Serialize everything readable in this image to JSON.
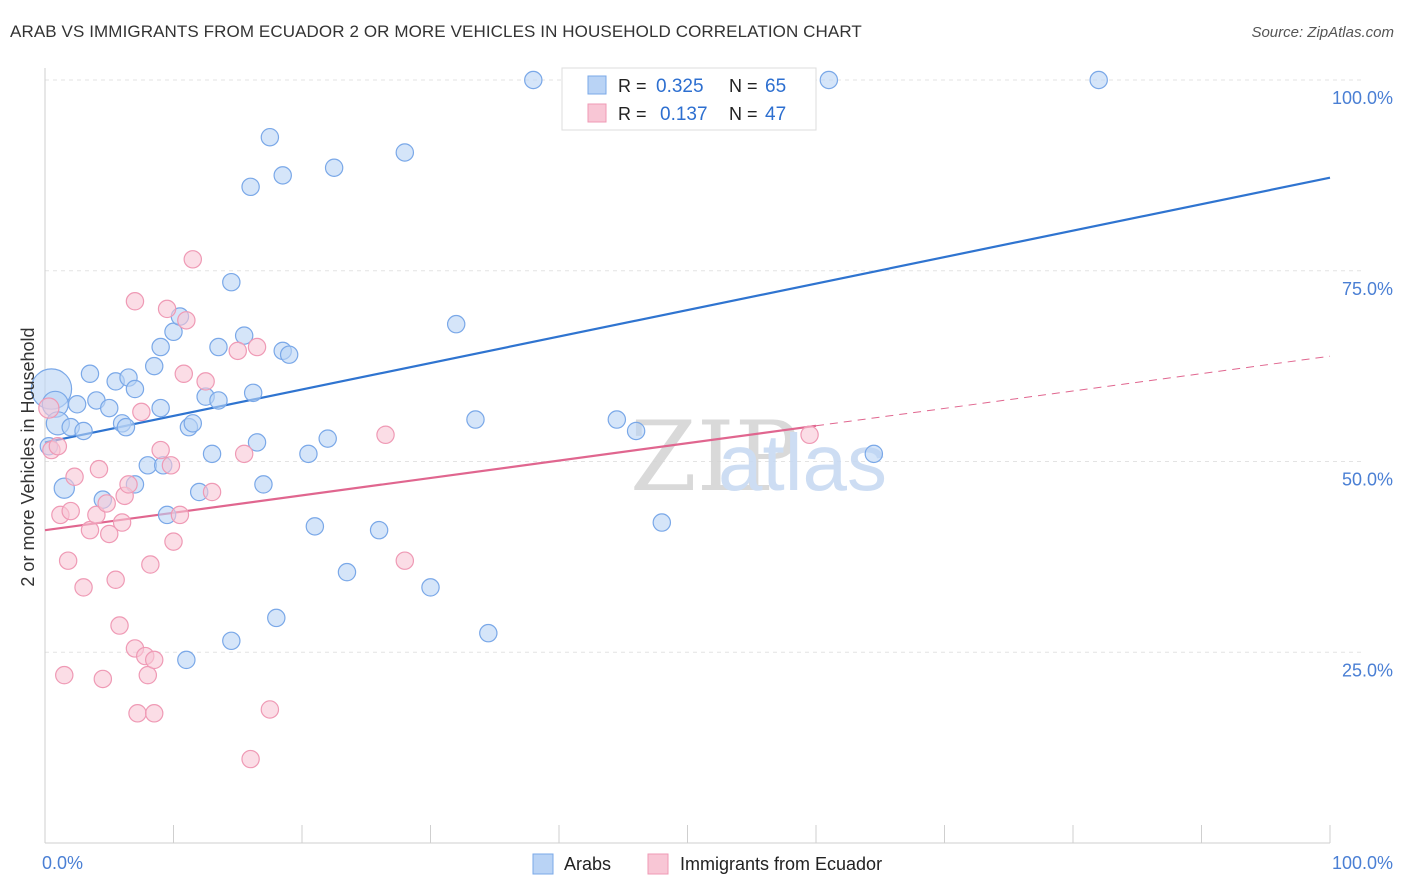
{
  "title": "ARAB VS IMMIGRANTS FROM ECUADOR 2 OR MORE VEHICLES IN HOUSEHOLD CORRELATION CHART",
  "source": "Source: ZipAtlas.com",
  "watermark": {
    "zip": "ZIP",
    "atlas": "atlas"
  },
  "chart_data": {
    "type": "scatter",
    "ylabel": "2 or more Vehicles in Household",
    "xlim": [
      0,
      100
    ],
    "ylim": [
      0,
      100
    ],
    "x_tick_labels": {
      "left": "0.0%",
      "right": "100.0%"
    },
    "y_ticks": [
      {
        "value": 25,
        "label": "25.0%"
      },
      {
        "value": 50,
        "label": "50.0%"
      },
      {
        "value": 75,
        "label": "75.0%"
      },
      {
        "value": 100,
        "label": "100.0%"
      }
    ],
    "grid": true,
    "legend_position": "top-center",
    "series": [
      {
        "name": "Arabs",
        "color": "#7aa8e8",
        "fill": "#b9d3f5",
        "line_color": "#2f74d0",
        "R": "0.325",
        "N": "65",
        "trend": {
          "x0": 0,
          "y0": 52.5,
          "x1": 100,
          "y1": 87.2,
          "dash_from": null
        },
        "points": [
          [
            0.5,
            59.5,
            28
          ],
          [
            0.8,
            57.5,
            18
          ],
          [
            1.0,
            55.0,
            16
          ],
          [
            1.5,
            46.5,
            14
          ],
          [
            2.0,
            54.5,
            12
          ],
          [
            2.5,
            57.5,
            12
          ],
          [
            3.0,
            54.0,
            12
          ],
          [
            3.5,
            61.5,
            12
          ],
          [
            4.0,
            58.0,
            12
          ],
          [
            4.5,
            45.0,
            12
          ],
          [
            5.0,
            57.0,
            12
          ],
          [
            5.5,
            60.5,
            12
          ],
          [
            6.0,
            55.0,
            12
          ],
          [
            6.3,
            54.5,
            12
          ],
          [
            7.0,
            47.0,
            12
          ],
          [
            6.5,
            61.0,
            12
          ],
          [
            7.0,
            59.5,
            12
          ],
          [
            8.0,
            49.5,
            12
          ],
          [
            8.5,
            62.5,
            12
          ],
          [
            9.0,
            65.0,
            12
          ],
          [
            9.0,
            57.0,
            12
          ],
          [
            9.2,
            49.5,
            12
          ],
          [
            9.5,
            43.0,
            12
          ],
          [
            10.0,
            67.0,
            12
          ],
          [
            10.5,
            69.0,
            12
          ],
          [
            11.0,
            24.0,
            12
          ],
          [
            11.2,
            54.5,
            12
          ],
          [
            11.5,
            55.0,
            12
          ],
          [
            12.0,
            46.0,
            12
          ],
          [
            12.5,
            58.5,
            12
          ],
          [
            13.0,
            51.0,
            12
          ],
          [
            13.5,
            65.0,
            12
          ],
          [
            13.5,
            58.0,
            12
          ],
          [
            14.5,
            73.5,
            12
          ],
          [
            14.5,
            26.5,
            12
          ],
          [
            15.5,
            66.5,
            12
          ],
          [
            16.0,
            86.0,
            12
          ],
          [
            16.2,
            59.0,
            12
          ],
          [
            16.5,
            52.5,
            12
          ],
          [
            17.0,
            47.0,
            12
          ],
          [
            17.5,
            92.5,
            12
          ],
          [
            18.0,
            29.5,
            12
          ],
          [
            18.5,
            87.5,
            12
          ],
          [
            18.5,
            64.5,
            12
          ],
          [
            19.0,
            64.0,
            12
          ],
          [
            20.5,
            51.0,
            12
          ],
          [
            21.0,
            41.5,
            12
          ],
          [
            22.0,
            53.0,
            12
          ],
          [
            22.5,
            88.5,
            12
          ],
          [
            23.5,
            35.5,
            12
          ],
          [
            26.0,
            41.0,
            12
          ],
          [
            28.0,
            90.5,
            12
          ],
          [
            30.0,
            33.5,
            12
          ],
          [
            32.0,
            68.0,
            12
          ],
          [
            33.5,
            55.5,
            12
          ],
          [
            34.5,
            27.5,
            12
          ],
          [
            38.0,
            100.0,
            12
          ],
          [
            44.5,
            55.5,
            12
          ],
          [
            46.0,
            54.0,
            12
          ],
          [
            47.0,
            100.0,
            12
          ],
          [
            48.0,
            42.0,
            12
          ],
          [
            61.0,
            100.0,
            12
          ],
          [
            64.5,
            51.0,
            12
          ],
          [
            82.0,
            100.0,
            12
          ],
          [
            0.3,
            52.0,
            12
          ]
        ]
      },
      {
        "name": "Immigrants from Ecuador",
        "color": "#ef9ab5",
        "fill": "#f8c6d5",
        "line_color": "#e0668f",
        "R": "0.137",
        "N": "47",
        "trend": {
          "x0": 0,
          "y0": 41.0,
          "x1": 100,
          "y1": 63.8,
          "dash_from": 60
        },
        "points": [
          [
            0.3,
            57.0,
            14
          ],
          [
            0.5,
            51.5,
            12
          ],
          [
            1.0,
            52.0,
            12
          ],
          [
            1.2,
            43.0,
            12
          ],
          [
            1.5,
            22.0,
            12
          ],
          [
            1.8,
            37.0,
            12
          ],
          [
            2.0,
            43.5,
            12
          ],
          [
            2.3,
            48.0,
            12
          ],
          [
            3.0,
            33.5,
            12
          ],
          [
            3.5,
            41.0,
            12
          ],
          [
            4.0,
            43.0,
            12
          ],
          [
            4.2,
            49.0,
            12
          ],
          [
            4.5,
            21.5,
            12
          ],
          [
            4.8,
            44.5,
            12
          ],
          [
            5.0,
            40.5,
            12
          ],
          [
            5.5,
            34.5,
            12
          ],
          [
            5.8,
            28.5,
            12
          ],
          [
            6.2,
            45.5,
            12
          ],
          [
            6.5,
            47.0,
            12
          ],
          [
            7.0,
            25.5,
            12
          ],
          [
            7.0,
            71.0,
            12
          ],
          [
            7.2,
            17.0,
            12
          ],
          [
            7.5,
            56.5,
            12
          ],
          [
            7.8,
            24.5,
            12
          ],
          [
            8.0,
            22.0,
            12
          ],
          [
            8.2,
            36.5,
            12
          ],
          [
            8.5,
            24.0,
            12
          ],
          [
            8.5,
            17.0,
            12
          ],
          [
            9.0,
            51.5,
            12
          ],
          [
            9.5,
            70.0,
            12
          ],
          [
            9.8,
            49.5,
            12
          ],
          [
            10.0,
            39.5,
            12
          ],
          [
            10.5,
            43.0,
            12
          ],
          [
            10.8,
            61.5,
            12
          ],
          [
            11.0,
            68.5,
            12
          ],
          [
            11.5,
            76.5,
            12
          ],
          [
            12.5,
            60.5,
            12
          ],
          [
            13.0,
            46.0,
            12
          ],
          [
            15.0,
            64.5,
            12
          ],
          [
            15.5,
            51.0,
            12
          ],
          [
            16.0,
            11.0,
            12
          ],
          [
            16.5,
            65.0,
            12
          ],
          [
            17.5,
            17.5,
            12
          ],
          [
            26.5,
            53.5,
            12
          ],
          [
            28.0,
            37.0,
            12
          ],
          [
            59.5,
            53.5,
            12
          ],
          [
            6.0,
            42.0,
            12
          ]
        ]
      }
    ]
  },
  "legend": {
    "r_label": "R =",
    "n_label": "N ="
  }
}
